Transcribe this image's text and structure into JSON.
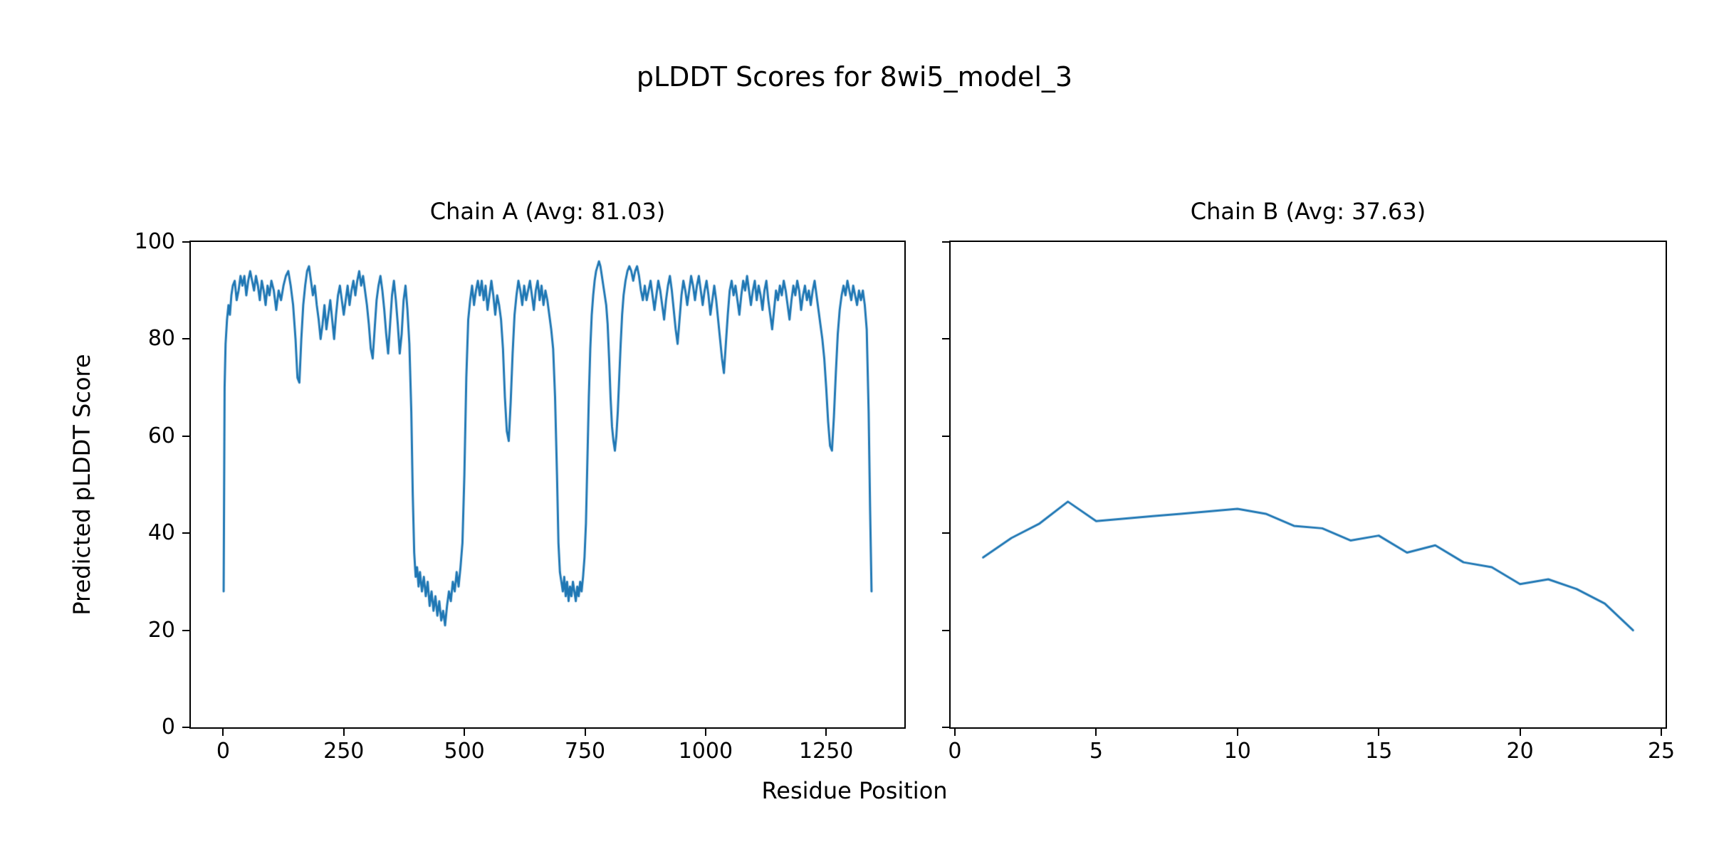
{
  "figure": {
    "title": "pLDDT Scores for 8wi5_model_3",
    "xlabel": "Residue Position",
    "ylabel": "Predicted pLDDT Score",
    "line_color": "#1f77b4",
    "background": "#ffffff"
  },
  "chart_data": [
    {
      "type": "line",
      "title": "Chain A (Avg: 81.03)",
      "avg": 81.03,
      "xlim": [
        -67,
        1412
      ],
      "ylim": [
        0,
        100
      ],
      "xticks": [
        0,
        250,
        500,
        750,
        1000,
        1250
      ],
      "yticks": [
        0,
        20,
        40,
        60,
        80,
        100
      ],
      "show_ytick_labels": true,
      "legend": "none",
      "grid": false,
      "points": [
        [
          1,
          28
        ],
        [
          3,
          70
        ],
        [
          5,
          79
        ],
        [
          8,
          84
        ],
        [
          11,
          87
        ],
        [
          14,
          85
        ],
        [
          17,
          89
        ],
        [
          20,
          91
        ],
        [
          24,
          92
        ],
        [
          28,
          88
        ],
        [
          32,
          90
        ],
        [
          36,
          93
        ],
        [
          40,
          91
        ],
        [
          44,
          93
        ],
        [
          48,
          89
        ],
        [
          52,
          92
        ],
        [
          56,
          94
        ],
        [
          60,
          92
        ],
        [
          64,
          90
        ],
        [
          68,
          93
        ],
        [
          72,
          91
        ],
        [
          76,
          88
        ],
        [
          80,
          92
        ],
        [
          84,
          90
        ],
        [
          88,
          87
        ],
        [
          92,
          91
        ],
        [
          96,
          89
        ],
        [
          100,
          92
        ],
        [
          105,
          90
        ],
        [
          110,
          86
        ],
        [
          115,
          90
        ],
        [
          120,
          88
        ],
        [
          125,
          91
        ],
        [
          130,
          93
        ],
        [
          135,
          94
        ],
        [
          140,
          91
        ],
        [
          145,
          87
        ],
        [
          150,
          80
        ],
        [
          154,
          72
        ],
        [
          158,
          71
        ],
        [
          162,
          80
        ],
        [
          166,
          87
        ],
        [
          170,
          91
        ],
        [
          174,
          94
        ],
        [
          178,
          95
        ],
        [
          182,
          92
        ],
        [
          186,
          89
        ],
        [
          190,
          91
        ],
        [
          194,
          87
        ],
        [
          198,
          84
        ],
        [
          202,
          80
        ],
        [
          206,
          83
        ],
        [
          210,
          87
        ],
        [
          214,
          82
        ],
        [
          218,
          85
        ],
        [
          222,
          88
        ],
        [
          226,
          84
        ],
        [
          230,
          80
        ],
        [
          234,
          85
        ],
        [
          238,
          89
        ],
        [
          242,
          91
        ],
        [
          246,
          88
        ],
        [
          250,
          85
        ],
        [
          254,
          88
        ],
        [
          258,
          91
        ],
        [
          262,
          87
        ],
        [
          266,
          90
        ],
        [
          270,
          92
        ],
        [
          274,
          89
        ],
        [
          278,
          92
        ],
        [
          282,
          94
        ],
        [
          286,
          91
        ],
        [
          290,
          93
        ],
        [
          294,
          90
        ],
        [
          298,
          87
        ],
        [
          302,
          83
        ],
        [
          306,
          78
        ],
        [
          310,
          76
        ],
        [
          314,
          82
        ],
        [
          318,
          88
        ],
        [
          322,
          91
        ],
        [
          326,
          93
        ],
        [
          330,
          90
        ],
        [
          334,
          86
        ],
        [
          338,
          81
        ],
        [
          342,
          77
        ],
        [
          346,
          83
        ],
        [
          350,
          89
        ],
        [
          354,
          92
        ],
        [
          358,
          88
        ],
        [
          362,
          83
        ],
        [
          366,
          77
        ],
        [
          370,
          81
        ],
        [
          374,
          88
        ],
        [
          378,
          91
        ],
        [
          382,
          86
        ],
        [
          386,
          79
        ],
        [
          390,
          65
        ],
        [
          393,
          48
        ],
        [
          396,
          36
        ],
        [
          399,
          31
        ],
        [
          402,
          33
        ],
        [
          405,
          29
        ],
        [
          408,
          32
        ],
        [
          412,
          28
        ],
        [
          416,
          31
        ],
        [
          420,
          27
        ],
        [
          424,
          30
        ],
        [
          428,
          25
        ],
        [
          432,
          28
        ],
        [
          436,
          24
        ],
        [
          440,
          27
        ],
        [
          444,
          23
        ],
        [
          448,
          26
        ],
        [
          452,
          22
        ],
        [
          456,
          24
        ],
        [
          460,
          21
        ],
        [
          464,
          25
        ],
        [
          468,
          28
        ],
        [
          472,
          26
        ],
        [
          476,
          30
        ],
        [
          480,
          28
        ],
        [
          484,
          32
        ],
        [
          488,
          29
        ],
        [
          492,
          33
        ],
        [
          496,
          38
        ],
        [
          500,
          52
        ],
        [
          504,
          72
        ],
        [
          508,
          84
        ],
        [
          512,
          88
        ],
        [
          516,
          91
        ],
        [
          520,
          87
        ],
        [
          524,
          90
        ],
        [
          528,
          92
        ],
        [
          532,
          89
        ],
        [
          536,
          92
        ],
        [
          540,
          88
        ],
        [
          544,
          91
        ],
        [
          548,
          86
        ],
        [
          552,
          89
        ],
        [
          556,
          92
        ],
        [
          560,
          89
        ],
        [
          564,
          85
        ],
        [
          568,
          89
        ],
        [
          572,
          87
        ],
        [
          576,
          84
        ],
        [
          580,
          78
        ],
        [
          584,
          68
        ],
        [
          588,
          61
        ],
        [
          592,
          59
        ],
        [
          596,
          67
        ],
        [
          600,
          77
        ],
        [
          604,
          85
        ],
        [
          608,
          89
        ],
        [
          612,
          92
        ],
        [
          616,
          90
        ],
        [
          620,
          87
        ],
        [
          624,
          91
        ],
        [
          628,
          88
        ],
        [
          632,
          90
        ],
        [
          636,
          92
        ],
        [
          640,
          89
        ],
        [
          644,
          86
        ],
        [
          648,
          90
        ],
        [
          652,
          92
        ],
        [
          656,
          88
        ],
        [
          660,
          91
        ],
        [
          664,
          87
        ],
        [
          668,
          90
        ],
        [
          672,
          88
        ],
        [
          676,
          85
        ],
        [
          680,
          82
        ],
        [
          684,
          78
        ],
        [
          688,
          68
        ],
        [
          692,
          52
        ],
        [
          695,
          38
        ],
        [
          698,
          32
        ],
        [
          701,
          30
        ],
        [
          704,
          28
        ],
        [
          707,
          31
        ],
        [
          710,
          27
        ],
        [
          713,
          30
        ],
        [
          716,
          26
        ],
        [
          719,
          29
        ],
        [
          722,
          27
        ],
        [
          725,
          30
        ],
        [
          728,
          28
        ],
        [
          731,
          26
        ],
        [
          734,
          29
        ],
        [
          737,
          27
        ],
        [
          740,
          30
        ],
        [
          743,
          28
        ],
        [
          746,
          31
        ],
        [
          749,
          35
        ],
        [
          752,
          42
        ],
        [
          755,
          55
        ],
        [
          758,
          68
        ],
        [
          761,
          78
        ],
        [
          764,
          85
        ],
        [
          767,
          89
        ],
        [
          770,
          92
        ],
        [
          773,
          94
        ],
        [
          776,
          95
        ],
        [
          779,
          96
        ],
        [
          782,
          95
        ],
        [
          785,
          93
        ],
        [
          788,
          91
        ],
        [
          791,
          89
        ],
        [
          794,
          87
        ],
        [
          797,
          83
        ],
        [
          800,
          76
        ],
        [
          803,
          68
        ],
        [
          806,
          62
        ],
        [
          809,
          59
        ],
        [
          812,
          57
        ],
        [
          815,
          60
        ],
        [
          818,
          65
        ],
        [
          821,
          72
        ],
        [
          824,
          79
        ],
        [
          827,
          85
        ],
        [
          830,
          89
        ],
        [
          834,
          92
        ],
        [
          838,
          94
        ],
        [
          842,
          95
        ],
        [
          846,
          94
        ],
        [
          850,
          92
        ],
        [
          854,
          94
        ],
        [
          858,
          95
        ],
        [
          862,
          93
        ],
        [
          866,
          90
        ],
        [
          870,
          88
        ],
        [
          874,
          91
        ],
        [
          878,
          88
        ],
        [
          882,
          90
        ],
        [
          886,
          92
        ],
        [
          890,
          89
        ],
        [
          894,
          86
        ],
        [
          898,
          89
        ],
        [
          902,
          92
        ],
        [
          906,
          90
        ],
        [
          910,
          87
        ],
        [
          914,
          84
        ],
        [
          918,
          88
        ],
        [
          922,
          91
        ],
        [
          926,
          93
        ],
        [
          930,
          90
        ],
        [
          934,
          86
        ],
        [
          938,
          82
        ],
        [
          942,
          79
        ],
        [
          946,
          84
        ],
        [
          950,
          89
        ],
        [
          954,
          92
        ],
        [
          958,
          90
        ],
        [
          962,
          87
        ],
        [
          966,
          90
        ],
        [
          970,
          93
        ],
        [
          974,
          91
        ],
        [
          978,
          88
        ],
        [
          982,
          91
        ],
        [
          986,
          93
        ],
        [
          990,
          90
        ],
        [
          994,
          87
        ],
        [
          998,
          90
        ],
        [
          1002,
          92
        ],
        [
          1006,
          89
        ],
        [
          1010,
          85
        ],
        [
          1014,
          88
        ],
        [
          1018,
          91
        ],
        [
          1022,
          88
        ],
        [
          1026,
          84
        ],
        [
          1030,
          80
        ],
        [
          1034,
          76
        ],
        [
          1038,
          73
        ],
        [
          1042,
          79
        ],
        [
          1046,
          85
        ],
        [
          1050,
          90
        ],
        [
          1054,
          92
        ],
        [
          1058,
          89
        ],
        [
          1062,
          91
        ],
        [
          1066,
          88
        ],
        [
          1070,
          85
        ],
        [
          1074,
          89
        ],
        [
          1078,
          92
        ],
        [
          1082,
          90
        ],
        [
          1086,
          93
        ],
        [
          1090,
          90
        ],
        [
          1094,
          87
        ],
        [
          1098,
          90
        ],
        [
          1102,
          92
        ],
        [
          1106,
          88
        ],
        [
          1110,
          91
        ],
        [
          1114,
          89
        ],
        [
          1118,
          86
        ],
        [
          1122,
          90
        ],
        [
          1126,
          92
        ],
        [
          1130,
          88
        ],
        [
          1134,
          85
        ],
        [
          1138,
          82
        ],
        [
          1142,
          86
        ],
        [
          1146,
          90
        ],
        [
          1150,
          88
        ],
        [
          1154,
          91
        ],
        [
          1158,
          89
        ],
        [
          1162,
          92
        ],
        [
          1166,
          90
        ],
        [
          1170,
          87
        ],
        [
          1174,
          84
        ],
        [
          1178,
          88
        ],
        [
          1182,
          91
        ],
        [
          1186,
          89
        ],
        [
          1190,
          92
        ],
        [
          1194,
          90
        ],
        [
          1198,
          86
        ],
        [
          1202,
          89
        ],
        [
          1206,
          91
        ],
        [
          1210,
          88
        ],
        [
          1214,
          90
        ],
        [
          1218,
          87
        ],
        [
          1222,
          90
        ],
        [
          1226,
          92
        ],
        [
          1230,
          89
        ],
        [
          1234,
          86
        ],
        [
          1238,
          83
        ],
        [
          1242,
          80
        ],
        [
          1246,
          76
        ],
        [
          1250,
          70
        ],
        [
          1254,
          63
        ],
        [
          1258,
          58
        ],
        [
          1262,
          57
        ],
        [
          1266,
          64
        ],
        [
          1270,
          73
        ],
        [
          1274,
          81
        ],
        [
          1278,
          86
        ],
        [
          1282,
          89
        ],
        [
          1286,
          91
        ],
        [
          1290,
          89
        ],
        [
          1294,
          92
        ],
        [
          1298,
          90
        ],
        [
          1302,
          88
        ],
        [
          1306,
          91
        ],
        [
          1310,
          89
        ],
        [
          1314,
          87
        ],
        [
          1318,
          90
        ],
        [
          1322,
          88
        ],
        [
          1326,
          90
        ],
        [
          1330,
          87
        ],
        [
          1334,
          82
        ],
        [
          1338,
          65
        ],
        [
          1341,
          45
        ],
        [
          1344,
          28
        ]
      ]
    },
    {
      "type": "line",
      "title": "Chain B (Avg: 37.63)",
      "avg": 37.63,
      "xlim": [
        -0.15,
        25.15
      ],
      "ylim": [
        0,
        100
      ],
      "xticks": [
        0,
        5,
        10,
        15,
        20,
        25
      ],
      "yticks": [
        0,
        20,
        40,
        60,
        80,
        100
      ],
      "show_ytick_labels": false,
      "legend": "none",
      "grid": false,
      "points": [
        [
          1,
          35
        ],
        [
          2,
          39
        ],
        [
          3,
          42
        ],
        [
          4,
          46.5
        ],
        [
          5,
          42.5
        ],
        [
          6,
          43
        ],
        [
          7,
          43.5
        ],
        [
          8,
          44
        ],
        [
          9,
          44.5
        ],
        [
          10,
          45
        ],
        [
          11,
          44
        ],
        [
          12,
          41.5
        ],
        [
          13,
          41
        ],
        [
          14,
          38.5
        ],
        [
          15,
          39.5
        ],
        [
          16,
          36
        ],
        [
          17,
          37.5
        ],
        [
          18,
          34
        ],
        [
          19,
          33
        ],
        [
          20,
          29.5
        ],
        [
          21,
          30.5
        ],
        [
          22,
          28.5
        ],
        [
          23,
          25.5
        ],
        [
          24,
          20
        ]
      ]
    }
  ]
}
